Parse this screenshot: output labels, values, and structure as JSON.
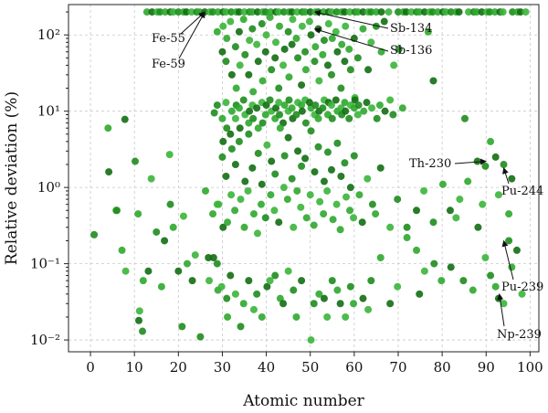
{
  "chart_data": {
    "type": "scatter",
    "xlabel": "Atomic number",
    "ylabel": "Relative deviation (%)",
    "xlim": [
      -5,
      102
    ],
    "ylim": [
      0.007,
      250
    ],
    "y_scale": "log",
    "grid": true,
    "x_ticks": [
      0,
      10,
      20,
      30,
      40,
      50,
      60,
      70,
      80,
      90,
      100
    ],
    "x_tick_labels": [
      "0",
      "10",
      "20",
      "30",
      "40",
      "50",
      "60",
      "70",
      "80",
      "90",
      "100"
    ],
    "y_ticks": [
      0.01,
      0.1,
      1,
      10,
      100
    ],
    "y_tick_labels": [
      "10⁻²",
      "10⁻¹",
      "10⁰",
      "10¹",
      "10²"
    ],
    "marker_colors": [
      "#1e8c1e",
      "#2ea82e",
      "#126e12",
      "#3ab53a"
    ],
    "annotations": [
      {
        "text": "Fe-55",
        "x": 26,
        "y": 200
      },
      {
        "text": "Fe-59",
        "x": 26,
        "y": 200
      },
      {
        "text": "Sb-134",
        "x": 51,
        "y": 200
      },
      {
        "text": "Sb-136",
        "x": 51,
        "y": 120
      },
      {
        "text": "Th-230",
        "x": 90,
        "y": 2.2
      },
      {
        "text": "Pu-244",
        "x": 94,
        "y": 1.8
      },
      {
        "text": "Pu-239",
        "x": 94,
        "y": 0.2
      },
      {
        "text": "Np-239",
        "x": 93,
        "y": 0.04
      }
    ],
    "series": [
      {
        "x": [
          1,
          4,
          4,
          6,
          6,
          7,
          8,
          8,
          10,
          11,
          11,
          11,
          12,
          12,
          13,
          14,
          15,
          16,
          17,
          18,
          18,
          19,
          20,
          21,
          21,
          22,
          23,
          24,
          25,
          26,
          27,
          27,
          28,
          28,
          28,
          29,
          29,
          29,
          30,
          30,
          31,
          31,
          32,
          33,
          34,
          35,
          36,
          37,
          38,
          39,
          40,
          41,
          42,
          43,
          44,
          45,
          46,
          47,
          48,
          50,
          51,
          52,
          53,
          54,
          55,
          56,
          57,
          58,
          59,
          60,
          62,
          63,
          64,
          66,
          68,
          70,
          72,
          74,
          75,
          76,
          78,
          80,
          82,
          83,
          85,
          87,
          88,
          90,
          91,
          92,
          93,
          94,
          95,
          96,
          97,
          98
        ],
        "y": [
          0.24,
          6,
          1.6,
          0.5,
          0.5,
          0.15,
          7.8,
          0.08,
          2.2,
          0.45,
          0.018,
          0.024,
          0.013,
          0.06,
          0.08,
          1.3,
          0.26,
          0.05,
          0.2,
          2.7,
          0.6,
          0.3,
          0.08,
          0.42,
          0.015,
          0.1,
          0.06,
          0.13,
          0.011,
          0.9,
          0.12,
          0.06,
          9.5,
          0.45,
          0.12,
          0.6,
          0.1,
          0.045,
          0.3,
          0.05,
          0.035,
          0.02,
          0.07,
          0.04,
          0.015,
          0.03,
          0.06,
          0.025,
          0.04,
          0.02,
          0.05,
          0.06,
          0.07,
          0.035,
          0.03,
          0.08,
          0.045,
          0.02,
          0.06,
          0.01,
          0.03,
          0.04,
          0.035,
          0.02,
          0.06,
          0.045,
          0.03,
          0.02,
          0.05,
          0.03,
          0.035,
          0.025,
          0.06,
          0.12,
          0.03,
          0.05,
          0.3,
          0.15,
          0.04,
          0.08,
          0.1,
          0.06,
          0.09,
          0.4,
          0.06,
          0.045,
          0.3,
          0.12,
          0.07,
          0.05,
          0.035,
          0.03,
          0.2,
          0.09,
          0.15,
          0.04
        ]
      },
      {
        "x": [
          13,
          14,
          15,
          16,
          17,
          18,
          19,
          20,
          21,
          22,
          23,
          24,
          25,
          26,
          27,
          28,
          29,
          30,
          31,
          32,
          33,
          34,
          35,
          36,
          37,
          38,
          39,
          40,
          41,
          42,
          43,
          44,
          45,
          46,
          47,
          48,
          49,
          50,
          51,
          52,
          53,
          54,
          55,
          56,
          57,
          58,
          59,
          60,
          61,
          62,
          63,
          64,
          65,
          66,
          68,
          70,
          71,
          72,
          73,
          74,
          75,
          76,
          77,
          78,
          79,
          80,
          81,
          82,
          83,
          84,
          86,
          87,
          88,
          89,
          90,
          91,
          92,
          93,
          94,
          96,
          97,
          98,
          99
        ],
        "y": [
          200,
          200,
          200,
          200,
          200,
          200,
          200,
          200,
          200,
          200,
          200,
          200,
          200,
          200,
          200,
          200,
          200,
          200,
          200,
          200,
          200,
          200,
          200,
          200,
          200,
          200,
          200,
          200,
          200,
          200,
          200,
          200,
          200,
          200,
          200,
          200,
          200,
          200,
          200,
          200,
          200,
          200,
          200,
          200,
          200,
          200,
          200,
          200,
          200,
          200,
          200,
          200,
          200,
          200,
          200,
          200,
          200,
          200,
          200,
          200,
          200,
          200,
          200,
          200,
          200,
          200,
          200,
          200,
          200,
          200,
          200,
          200,
          200,
          200,
          200,
          200,
          200,
          200,
          200,
          200,
          200,
          200,
          200
        ]
      },
      {
        "x": [
          29,
          30,
          30,
          31,
          31,
          32,
          32,
          33,
          33,
          34,
          34,
          35,
          35,
          36,
          36,
          37,
          37,
          38,
          38,
          39,
          39,
          40,
          40,
          41,
          41,
          42,
          42,
          43,
          43,
          44,
          44,
          45,
          45,
          46,
          46,
          47,
          47,
          48,
          48,
          49,
          49,
          50,
          50,
          51,
          51,
          52,
          52,
          53,
          53,
          54,
          54,
          55,
          55,
          56,
          56,
          57,
          57,
          58,
          58,
          59,
          59,
          60,
          60,
          61,
          62,
          63,
          64,
          65,
          66,
          67,
          69,
          70,
          77,
          78
        ],
        "y": [
          110,
          60,
          130,
          45,
          90,
          30,
          150,
          70,
          20,
          110,
          40,
          55,
          160,
          30,
          85,
          120,
          18,
          45,
          75,
          140,
          25,
          60,
          100,
          35,
          170,
          50,
          80,
          20,
          130,
          65,
          40,
          110,
          28,
          75,
          160,
          50,
          90,
          22,
          130,
          60,
          35,
          100,
          150,
          45,
          70,
          120,
          25,
          85,
          55,
          40,
          140,
          30,
          90,
          60,
          110,
          20,
          75,
          45,
          130,
          35,
          65,
          90,
          15,
          50,
          120,
          35,
          80,
          130,
          60,
          150,
          40,
          65,
          110,
          25
        ]
      },
      {
        "x": [
          29,
          30,
          30,
          31,
          31,
          32,
          32,
          33,
          33,
          34,
          34,
          35,
          35,
          36,
          36,
          37,
          37,
          38,
          38,
          39,
          39,
          40,
          40,
          41,
          41,
          42,
          42,
          43,
          43,
          44,
          44,
          45,
          45,
          46,
          46,
          47,
          47,
          48,
          48,
          49,
          49,
          50,
          50,
          51,
          51,
          52,
          52,
          53,
          53,
          54,
          54,
          55,
          55,
          56,
          56,
          57,
          57,
          58,
          58,
          59,
          59,
          60,
          60,
          61,
          61,
          62,
          63,
          64,
          65,
          66,
          67,
          68,
          69,
          71
        ],
        "y": [
          12,
          8,
          4,
          13,
          6,
          10,
          5,
          8,
          12,
          11,
          6,
          9,
          14,
          7,
          10,
          12,
          8,
          6,
          11,
          13,
          7,
          9,
          12,
          10,
          14,
          8,
          11,
          13,
          9,
          12,
          7,
          10,
          14,
          11,
          8,
          13,
          9,
          12,
          10,
          14,
          7,
          11,
          13,
          9,
          12,
          8,
          10,
          14,
          11,
          9,
          13,
          12,
          8,
          10,
          14,
          11,
          9,
          13,
          10,
          12,
          8,
          11,
          14,
          9,
          12,
          10,
          13,
          11,
          8,
          12,
          10,
          14,
          9,
          11
        ]
      },
      {
        "x": [
          29,
          30,
          31,
          31,
          32,
          32,
          33,
          33,
          34,
          34,
          35,
          35,
          36,
          36,
          37,
          37,
          38,
          38,
          39,
          39,
          40,
          40,
          41,
          41,
          42,
          42,
          43,
          43,
          44,
          44,
          45,
          45,
          46,
          46,
          47,
          47,
          48,
          48,
          49,
          49,
          50,
          50,
          51,
          51,
          52,
          52,
          53,
          53,
          54,
          54,
          55,
          55,
          56,
          56,
          57,
          57,
          58,
          58,
          59,
          59,
          60,
          60,
          61,
          62,
          63,
          64,
          65,
          66,
          68,
          70,
          72,
          74,
          76,
          78,
          80,
          82,
          84,
          85,
          86,
          88,
          89,
          90,
          91,
          92,
          93,
          94,
          95,
          96
        ],
        "y": [
          0.6,
          2.5,
          0.35,
          1.4,
          0.8,
          3.2,
          0.5,
          2.0,
          0.7,
          4.0,
          0.3,
          1.2,
          0.9,
          5.0,
          0.45,
          1.8,
          0.25,
          2.8,
          0.6,
          1.1,
          3.6,
          0.4,
          0.8,
          2.2,
          0.5,
          1.5,
          6.0,
          0.35,
          1.0,
          2.6,
          0.7,
          4.5,
          0.3,
          1.3,
          0.9,
          3.0,
          0.55,
          1.9,
          0.4,
          2.4,
          0.8,
          5.5,
          0.32,
          1.6,
          0.65,
          3.4,
          0.45,
          1.2,
          0.9,
          2.9,
          0.38,
          1.7,
          0.6,
          3.8,
          0.28,
          1.4,
          0.75,
          2.1,
          0.5,
          1.0,
          0.4,
          2.6,
          0.8,
          0.35,
          1.3,
          0.6,
          0.45,
          1.8,
          0.3,
          0.7,
          0.22,
          0.5,
          0.9,
          0.35,
          1.1,
          0.5,
          0.7,
          8.0,
          1.2,
          2.2,
          0.6,
          1.9,
          4.0,
          2.5,
          0.8,
          2.0,
          0.45,
          1.3
        ]
      }
    ]
  }
}
